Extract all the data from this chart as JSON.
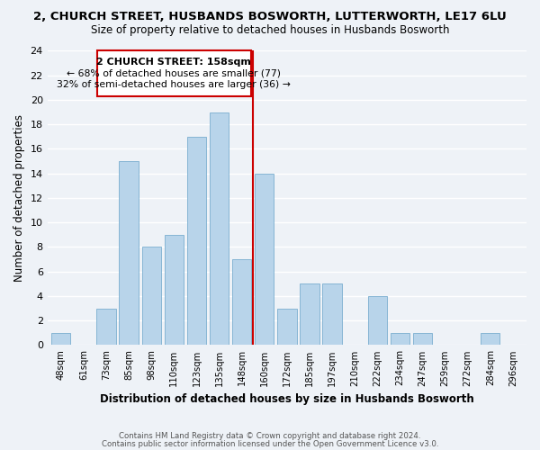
{
  "title": "2, CHURCH STREET, HUSBANDS BOSWORTH, LUTTERWORTH, LE17 6LU",
  "subtitle": "Size of property relative to detached houses in Husbands Bosworth",
  "xlabel": "Distribution of detached houses by size in Husbands Bosworth",
  "ylabel": "Number of detached properties",
  "bin_labels": [
    "48sqm",
    "61sqm",
    "73sqm",
    "85sqm",
    "98sqm",
    "110sqm",
    "123sqm",
    "135sqm",
    "148sqm",
    "160sqm",
    "172sqm",
    "185sqm",
    "197sqm",
    "210sqm",
    "222sqm",
    "234sqm",
    "247sqm",
    "259sqm",
    "272sqm",
    "284sqm",
    "296sqm"
  ],
  "bar_heights": [
    1,
    0,
    3,
    15,
    8,
    9,
    17,
    19,
    7,
    14,
    3,
    5,
    5,
    0,
    4,
    1,
    1,
    0,
    0,
    1,
    0
  ],
  "bar_color": "#b8d4ea",
  "bar_edge_color": "#7aaecf",
  "vline_color": "#cc0000",
  "annotation_title": "2 CHURCH STREET: 158sqm",
  "annotation_line1": "← 68% of detached houses are smaller (77)",
  "annotation_line2": "32% of semi-detached houses are larger (36) →",
  "annotation_box_color": "#ffffff",
  "annotation_box_edge": "#cc0000",
  "ylim": [
    0,
    24
  ],
  "yticks": [
    0,
    2,
    4,
    6,
    8,
    10,
    12,
    14,
    16,
    18,
    20,
    22,
    24
  ],
  "footer1": "Contains HM Land Registry data © Crown copyright and database right 2024.",
  "footer2": "Contains public sector information licensed under the Open Government Licence v3.0.",
  "bg_color": "#eef2f7",
  "title_fontsize": 9.5,
  "subtitle_fontsize": 8.5
}
